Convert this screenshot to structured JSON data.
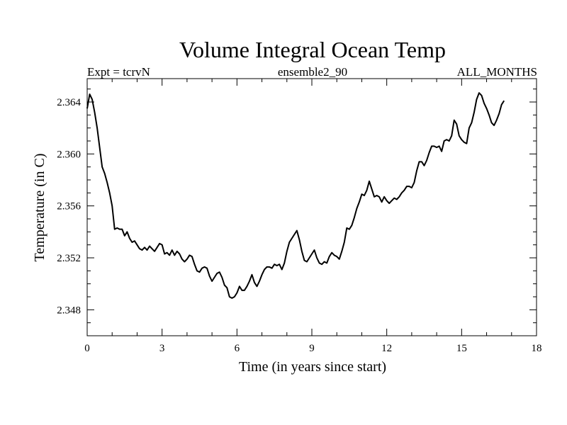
{
  "chart_data": {
    "type": "line",
    "title": "Volume Integral Ocean Temp",
    "subtitle_left": "Expt = tcrvN",
    "subtitle_center": "ensemble2_90",
    "subtitle_right": "ALL_MONTHS",
    "xlabel": "Time (in years since start)",
    "ylabel": "Temperature (in C)",
    "xlim": [
      0,
      18
    ],
    "ylim": [
      2.346,
      2.3658
    ],
    "xticks": [
      0,
      3,
      6,
      9,
      12,
      15,
      18
    ],
    "xtick_labels": [
      "0",
      "3",
      "6",
      "9",
      "12",
      "15",
      "18"
    ],
    "yticks": [
      2.348,
      2.352,
      2.356,
      2.36,
      2.364
    ],
    "ytick_labels": [
      "2.348",
      "2.352",
      "2.356",
      "2.360",
      "2.364"
    ],
    "grid": false,
    "line_color": "#000000",
    "series": [
      {
        "name": "Volume Integral Ocean Temp",
        "x": [
          0.0,
          0.1,
          0.2,
          0.3,
          0.4,
          0.5,
          0.6,
          0.7,
          0.8,
          0.9,
          1.0,
          1.1,
          1.2,
          1.3,
          1.4,
          1.5,
          1.6,
          1.7,
          1.8,
          1.9,
          2.0,
          2.1,
          2.2,
          2.3,
          2.4,
          2.5,
          2.6,
          2.7,
          2.8,
          2.9,
          3.0,
          3.1,
          3.2,
          3.3,
          3.4,
          3.5,
          3.6,
          3.7,
          3.8,
          3.9,
          4.0,
          4.1,
          4.2,
          4.3,
          4.4,
          4.5,
          4.6,
          4.7,
          4.8,
          4.9,
          5.0,
          5.1,
          5.2,
          5.3,
          5.4,
          5.5,
          5.6,
          5.7,
          5.8,
          5.9,
          6.0,
          6.1,
          6.2,
          6.3,
          6.4,
          6.5,
          6.6,
          6.7,
          6.8,
          6.9,
          7.0,
          7.1,
          7.2,
          7.3,
          7.4,
          7.5,
          7.6,
          7.7,
          7.8,
          7.9,
          8.0,
          8.1,
          8.2,
          8.3,
          8.4,
          8.5,
          8.6,
          8.7,
          8.8,
          8.9,
          9.0,
          9.1,
          9.2,
          9.3,
          9.4,
          9.5,
          9.6,
          9.7,
          9.8,
          9.9,
          10.0,
          10.1,
          10.2,
          10.3,
          10.4,
          10.5,
          10.6,
          10.7,
          10.8,
          10.9,
          11.0,
          11.1,
          11.2,
          11.3,
          11.4,
          11.5,
          11.6,
          11.7,
          11.8,
          11.9,
          12.0,
          12.1,
          12.2,
          12.3,
          12.4,
          12.5,
          12.6,
          12.7,
          12.8,
          12.9,
          13.0,
          13.1,
          13.2,
          13.3,
          13.4,
          13.5,
          13.6,
          13.7,
          13.8,
          13.9,
          14.0,
          14.1,
          14.2,
          14.3,
          14.4,
          14.5,
          14.6,
          14.7,
          14.8,
          14.9,
          15.0,
          15.1,
          15.2,
          15.3,
          15.4,
          15.5,
          15.6,
          15.7,
          15.8,
          15.9,
          16.0,
          16.1,
          16.2,
          16.3,
          16.4,
          16.5,
          16.6,
          16.7
        ],
        "y": [
          2.3635,
          2.3646,
          2.3642,
          2.3632,
          2.362,
          2.3605,
          2.359,
          2.3585,
          2.3578,
          2.357,
          2.356,
          2.3542,
          2.3543,
          2.3542,
          2.3542,
          2.3537,
          2.354,
          2.3535,
          2.3532,
          2.3533,
          2.353,
          2.3527,
          2.3526,
          2.3528,
          2.3526,
          2.3529,
          2.3527,
          2.3525,
          2.3528,
          2.3531,
          2.353,
          2.3523,
          2.3524,
          2.3522,
          2.3526,
          2.3522,
          2.3525,
          2.3523,
          2.3519,
          2.3517,
          2.3519,
          2.3522,
          2.3521,
          2.3515,
          2.351,
          2.3509,
          2.3512,
          2.3513,
          2.3512,
          2.3506,
          2.3502,
          2.3505,
          2.3508,
          2.3509,
          2.3505,
          2.3499,
          2.3497,
          2.349,
          2.3489,
          2.349,
          2.3493,
          2.3498,
          2.3495,
          2.3495,
          2.3498,
          2.3502,
          2.3507,
          2.3501,
          2.3498,
          2.3502,
          2.3507,
          2.3511,
          2.3513,
          2.3513,
          2.3512,
          2.3515,
          2.3514,
          2.3515,
          2.3511,
          2.3516,
          2.3525,
          2.3532,
          2.3535,
          2.3538,
          2.3541,
          2.3534,
          2.3525,
          2.3518,
          2.3517,
          2.352,
          2.3523,
          2.3526,
          2.352,
          2.3516,
          2.3515,
          2.3517,
          2.3516,
          2.3521,
          2.3524,
          2.3522,
          2.3521,
          2.3519,
          2.3525,
          2.3532,
          2.3543,
          2.3542,
          2.3545,
          2.3551,
          2.3558,
          2.3563,
          2.3569,
          2.3568,
          2.3572,
          2.3579,
          2.3573,
          2.3567,
          2.3568,
          2.3567,
          2.3563,
          2.3567,
          2.3564,
          2.3562,
          2.3564,
          2.3566,
          2.3565,
          2.3567,
          2.357,
          2.3572,
          2.3575,
          2.3575,
          2.3574,
          2.3578,
          2.3587,
          2.3594,
          2.3594,
          2.3591,
          2.3595,
          2.3601,
          2.3606,
          2.3606,
          2.3605,
          2.3606,
          2.3602,
          2.361,
          2.3611,
          2.361,
          2.3614,
          2.3626,
          2.3623,
          2.3614,
          2.3611,
          2.3609,
          2.3608,
          2.362,
          2.3624,
          2.3632,
          2.3642,
          2.3647,
          2.3645,
          2.3639,
          2.3635,
          2.363,
          2.3624,
          2.3622,
          2.3626,
          2.3631,
          2.3638,
          2.3641
        ]
      }
    ]
  }
}
